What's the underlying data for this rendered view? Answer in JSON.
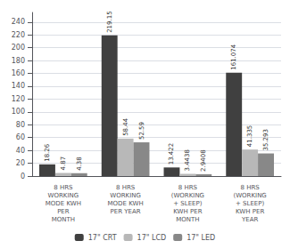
{
  "chart_data": {
    "type": "bar",
    "categories": [
      "8 HRS\nWORKING\nMODE KWH\nPER\nMONTH",
      "8 HRS\nWORKING\nMODE KWH\nPER YEAR",
      "8 HRS\n(WORKING\n+ SLEEP)\nKWH PER\nMONTH",
      "8 HRS\n(WORKING\n+ SLEEP)\nKWH PER\nYEAR"
    ],
    "series": [
      {
        "name": "17\" CRT",
        "color": "#404040",
        "values": [
          18.26,
          219.15,
          13.422,
          161.074
        ]
      },
      {
        "name": "17\" LCD",
        "color": "#b8b8b8",
        "values": [
          4.87,
          58.44,
          3.4438,
          41.335
        ]
      },
      {
        "name": "17\" LED",
        "color": "#888888",
        "values": [
          4.38,
          52.59,
          2.9408,
          35.293
        ]
      }
    ],
    "ylim": [
      0,
      255
    ],
    "yticks": [
      0,
      20,
      40,
      60,
      80,
      100,
      120,
      140,
      160,
      180,
      200,
      220,
      240
    ],
    "grid": true,
    "legend": "bottom",
    "data_labels": true
  }
}
